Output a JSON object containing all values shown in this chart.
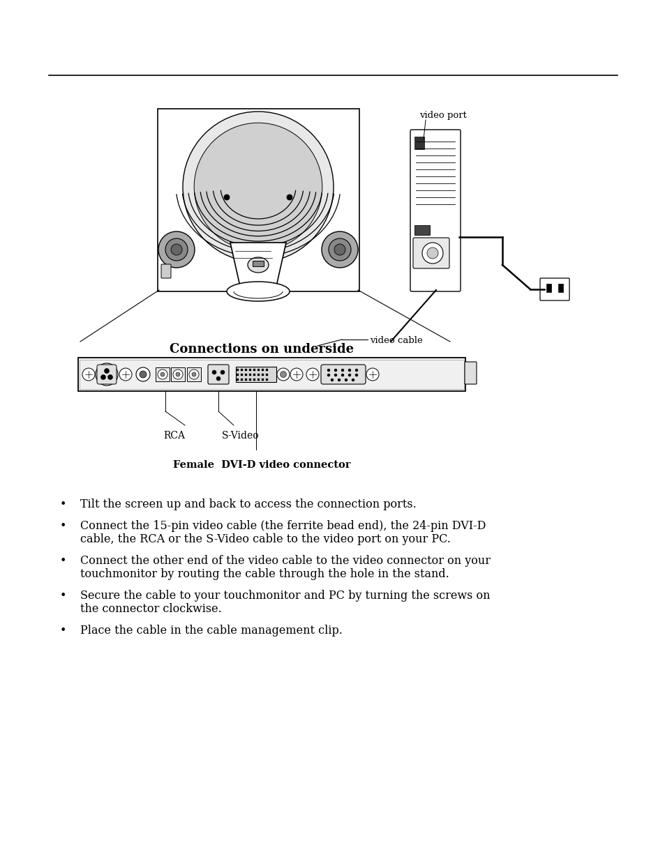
{
  "bg_color": "#ffffff",
  "line_color": "#000000",
  "caption_female_dvi": "Female  DVI-D video connector",
  "caption_video_port": "video port",
  "caption_video_cable": "video cable",
  "caption_connections": "Connections on underside",
  "caption_rca": "RCA",
  "caption_svideo": "S-Video",
  "bullet_points": [
    "Tilt the screen up and back to access the connection ports.",
    "Connect the 15-pin video cable (the ferrite bead end), the 24-pin DVI-D\ncable, the RCA or the S-Video cable to the video port on your PC.",
    "Connect the other end of the video cable to the video connector on your\ntouchmonitor by routing the cable through the hole in the stand.",
    "Secure the cable to your touchmonitor and PC by turning the screws on\nthe connector clockwise.",
    "Place the cable in the cable management clip."
  ],
  "font_size_body": 11.5,
  "font_size_caption_dvi": 10.5,
  "font_size_connections": 13.0,
  "font_size_label": 10.0,
  "font_size_video_port": 9.5
}
